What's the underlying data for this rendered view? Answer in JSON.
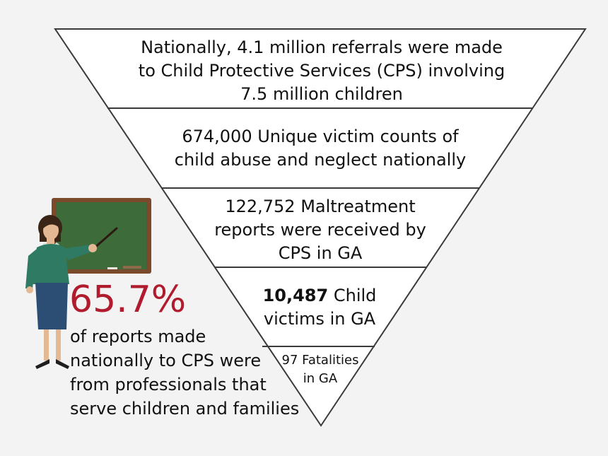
{
  "funnel": {
    "tiers": [
      {
        "lines": [
          "Nationally, 4.1 million referrals were made",
          "to Child Protective Services (CPS) involving",
          "7.5 million children"
        ]
      },
      {
        "lines": [
          "674,000 Unique victim counts of",
          "child abuse and neglect nationally"
        ]
      },
      {
        "lines": [
          "122,752 Maltreatment",
          "reports were received by",
          "CPS in GA"
        ]
      },
      {
        "bold": "10,487",
        "lines": [
          " Child",
          "victims in GA"
        ]
      },
      {
        "lines": [
          "97 Fatalities",
          "in GA"
        ]
      }
    ]
  },
  "stat": {
    "percent": "65.7%",
    "caption_lines": [
      "of reports made",
      "nationally to CPS were",
      "from professionals that",
      "serve children and families"
    ]
  },
  "colors": {
    "background": "#f3f3f3",
    "outline": "#3a3a3a",
    "percent": "#b01c2e",
    "chalkboard": "#3e6b3a",
    "board_frame": "#7a4a2c",
    "teacher_top": "#2f7a63",
    "teacher_skirt": "#2c4e75",
    "skin": "#e5b894",
    "hair": "#3a2416"
  },
  "icons": [
    "teacher-illustration",
    "chalkboard-icon",
    "pointer-stick-icon"
  ]
}
